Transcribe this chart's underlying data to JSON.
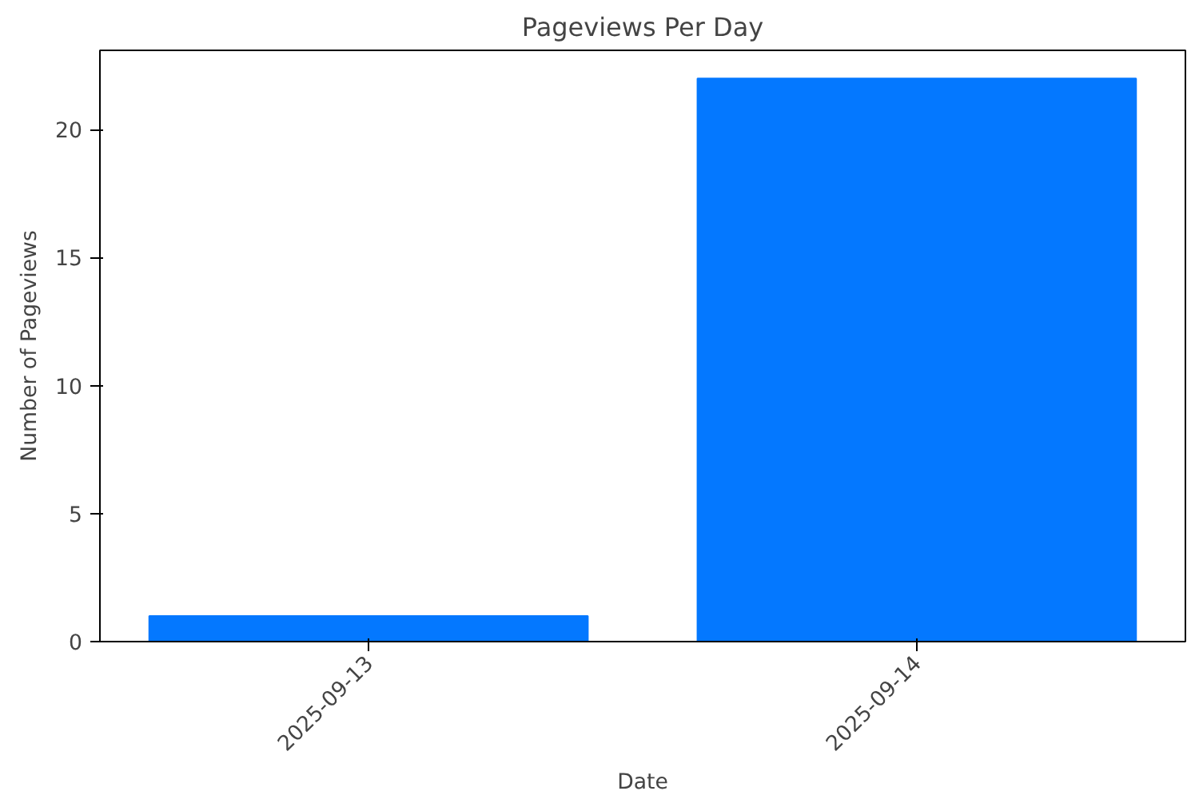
{
  "chart_data": {
    "type": "bar",
    "title": "Pageviews Per Day",
    "xlabel": "Date",
    "ylabel": "Number of Pageviews",
    "categories": [
      "2025-09-13",
      "2025-09-14"
    ],
    "values": [
      1,
      22
    ],
    "color": "#0478ff",
    "ylim": [
      0,
      23.1
    ],
    "yticks": [
      0,
      5,
      10,
      15,
      20
    ],
    "grid": false
  }
}
